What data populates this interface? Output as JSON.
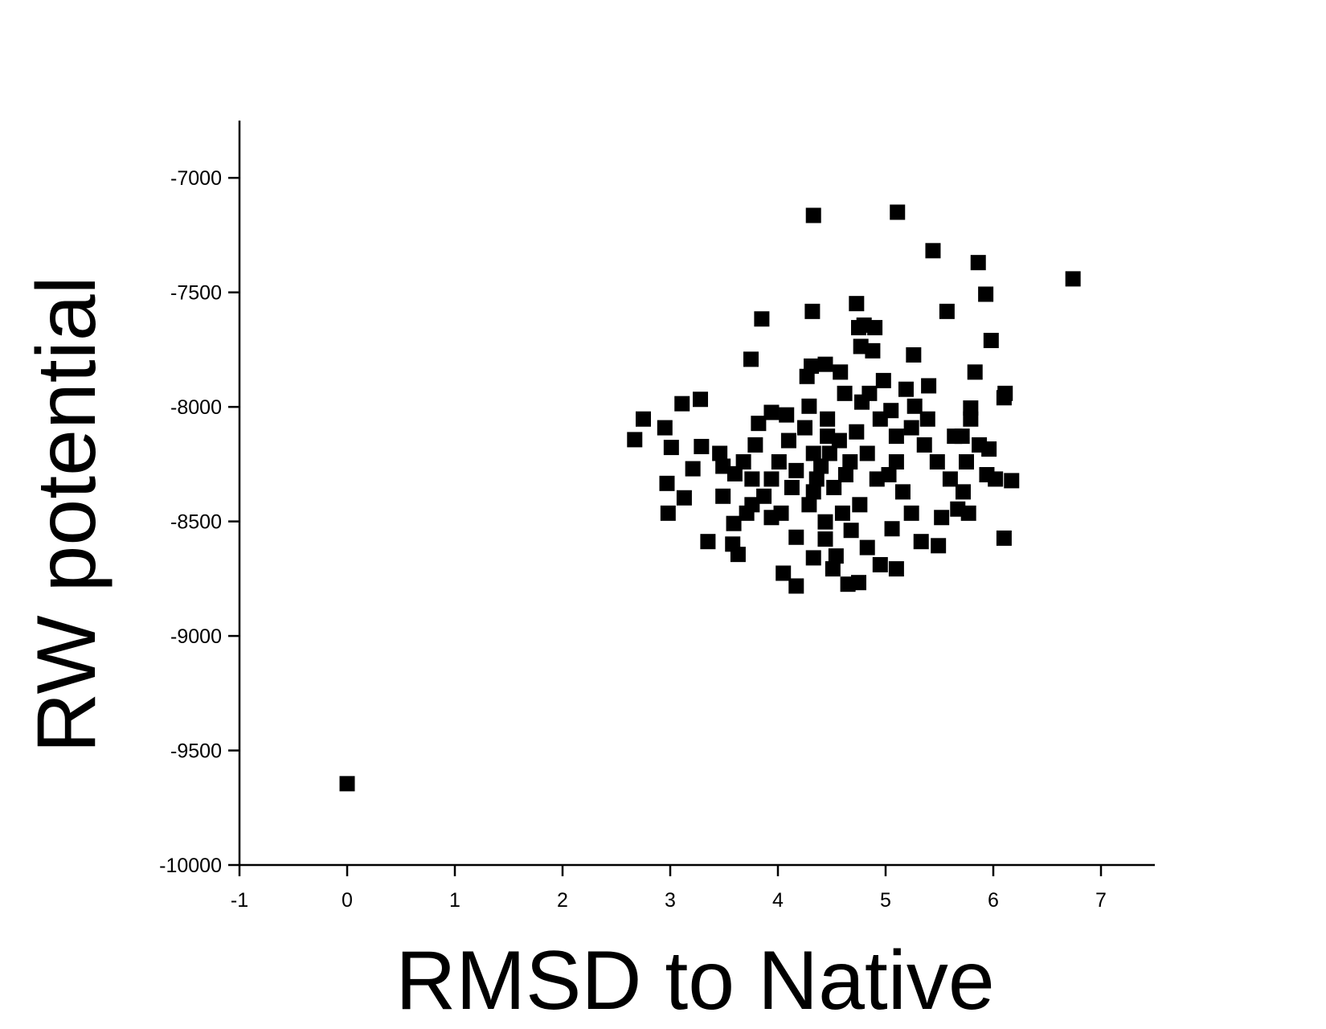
{
  "chart_data": {
    "type": "scatter",
    "xlabel": "RMSD to Native",
    "ylabel": "RW potential",
    "color": "#000000",
    "xlim": [
      -1,
      7.5
    ],
    "xticks": [
      -1,
      0,
      1,
      2,
      3,
      4,
      5,
      6,
      7
    ],
    "ylim": [
      -10000,
      -6750
    ],
    "yticks": [
      -10000,
      -9500,
      -9000,
      -8500,
      -8000,
      -7500,
      -7000
    ],
    "x": [
      0,
      4.33,
      5.11,
      5.44,
      5.86,
      6.74,
      5.93,
      4.32,
      5.57,
      4.73,
      3.85,
      4.75,
      4.9,
      5.98,
      3.75,
      5.26,
      5.83,
      2.67,
      2.75,
      3.11,
      3.28,
      2.95,
      3.01,
      2.97,
      2.98,
      3.13,
      3.35,
      3.58,
      3.63,
      4.05,
      4.17,
      4.51,
      4.65,
      4.75,
      5.1,
      6.1,
      6.17,
      6.11,
      5.79,
      5.4,
      5.19,
      5.05,
      5.96,
      5.77,
      5.49,
      5.33,
      5.06,
      4.95,
      4.83,
      4.54,
      4.33,
      4.17,
      3.94,
      3.76,
      3.59,
      3.49,
      3.49,
      3.46,
      3.29,
      3.21,
      3.6,
      3.79,
      3.82,
      3.94,
      4.08,
      4.29,
      4.27,
      4.31,
      4.44,
      4.58,
      4.77,
      4.88,
      4.98,
      4.78,
      4.62,
      4.46,
      4.46,
      4.33,
      4.17,
      4.36,
      4.52,
      4.67,
      4.83,
      4.92,
      4.76,
      4.6,
      4.44,
      4.29,
      4.13,
      4.01,
      3.94,
      4.1,
      4.25,
      4.57,
      4.73,
      5.1,
      5.24,
      5.36,
      5.48,
      5.6,
      5.72,
      5.64,
      5.87,
      5.94,
      5.67,
      5.52,
      5.24,
      5.16,
      5.03,
      5.1,
      5.27,
      5.39,
      4.95,
      4.4,
      4.48,
      4.63,
      4.33,
      4.44,
      4.68,
      3.76,
      3.68,
      3.87,
      4.03,
      3.71,
      5.75,
      5.79,
      6.02,
      6.1,
      4.85,
      4.8,
      5.71
    ],
    "values": [
      -9645,
      -7164,
      -7150,
      -7318,
      -7370,
      -7441,
      -7508,
      -7583,
      -7583,
      -7549,
      -7616,
      -7654,
      -7654,
      -7710,
      -7792,
      -7773,
      -7848,
      -8143,
      -8053,
      -7986,
      -7967,
      -8091,
      -8177,
      -8334,
      -8464,
      -8397,
      -8588,
      -8599,
      -8644,
      -8726,
      -8782,
      -8707,
      -8774,
      -8767,
      -8707,
      -8573,
      -8322,
      -7941,
      -8005,
      -7908,
      -7923,
      -8016,
      -8184,
      -8464,
      -8606,
      -8588,
      -8532,
      -8689,
      -8614,
      -8651,
      -8659,
      -8569,
      -8483,
      -8427,
      -8509,
      -8390,
      -8259,
      -8203,
      -8173,
      -8270,
      -8292,
      -8166,
      -8072,
      -8024,
      -8035,
      -7997,
      -7867,
      -7822,
      -7814,
      -7848,
      -7736,
      -7755,
      -7885,
      -7979,
      -7941,
      -8053,
      -8128,
      -8203,
      -8278,
      -8315,
      -8352,
      -8240,
      -8203,
      -8315,
      -8427,
      -8464,
      -8502,
      -8427,
      -8352,
      -8240,
      -8315,
      -8147,
      -8091,
      -8147,
      -8109,
      -8128,
      -8091,
      -8166,
      -8240,
      -8315,
      -8371,
      -8128,
      -8166,
      -8296,
      -8446,
      -8483,
      -8464,
      -8371,
      -8296,
      -8240,
      -7997,
      -8053,
      -8053,
      -8259,
      -8203,
      -8296,
      -8371,
      -8577,
      -8539,
      -8315,
      -8240,
      -8390,
      -8464,
      -8464,
      -8240,
      -8053,
      -8315,
      -7960,
      -7941,
      -7643,
      -8128
    ]
  }
}
